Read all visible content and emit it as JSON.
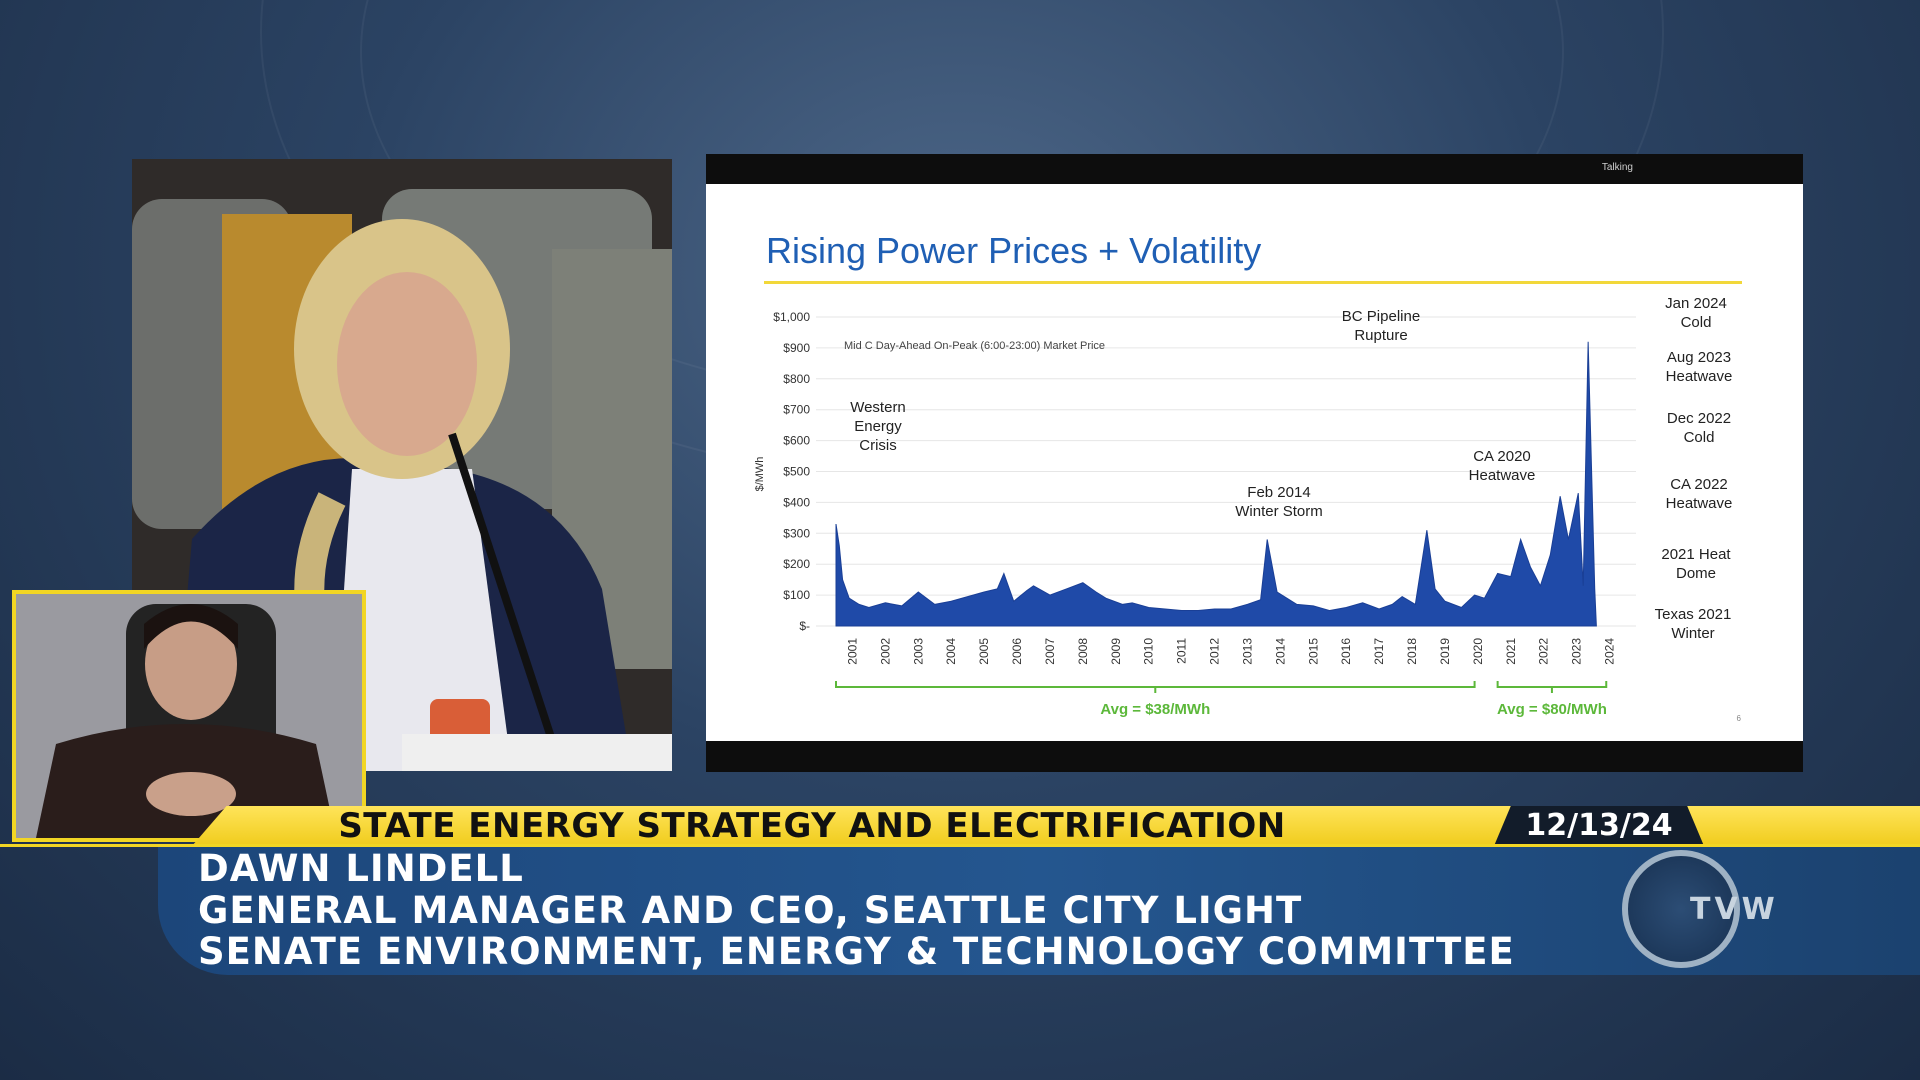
{
  "slide": {
    "top_label": "Talking",
    "title": "Rising Power Prices + Volatility",
    "page_number": "6"
  },
  "chart_data": {
    "type": "area",
    "subtitle": "Mid C Day-Ahead On-Peak (6:00-23:00) Market Price",
    "ylabel": "$/MWh",
    "ylim": [
      0,
      1000
    ],
    "y_ticks": [
      "$1,000",
      "$900",
      "$800",
      "$700",
      "$600",
      "$500",
      "$400",
      "$300",
      "$200",
      "$100",
      "$-"
    ],
    "x_ticks": [
      "2001",
      "2002",
      "2003",
      "2004",
      "2005",
      "2006",
      "2007",
      "2008",
      "2009",
      "2010",
      "2011",
      "2012",
      "2013",
      "2014",
      "2015",
      "2016",
      "2017",
      "2018",
      "2019",
      "2020",
      "2021",
      "2022",
      "2023",
      "2024"
    ],
    "series": [
      {
        "color": "#1f4aa8",
        "x": [
          2001.0,
          2001.1,
          2001.2,
          2001.4,
          2001.7,
          2002.0,
          2002.5,
          2003.0,
          2003.5,
          2004.0,
          2004.5,
          2005.0,
          2005.5,
          2005.9,
          2006.1,
          2006.4,
          2006.8,
          2007.0,
          2007.5,
          2008.0,
          2008.5,
          2008.9,
          2009.2,
          2009.7,
          2010.0,
          2010.5,
          2011.0,
          2011.5,
          2012.0,
          2012.5,
          2013.0,
          2013.5,
          2013.9,
          2014.1,
          2014.4,
          2015.0,
          2015.5,
          2016.0,
          2016.5,
          2017.0,
          2017.5,
          2017.9,
          2018.2,
          2018.6,
          2018.95,
          2019.2,
          2019.5,
          2020.0,
          2020.4,
          2020.7,
          2021.1,
          2021.5,
          2021.8,
          2022.1,
          2022.4,
          2022.7,
          2023.0,
          2023.25,
          2023.55,
          2023.7,
          2023.85,
          2024.05,
          2024.1
        ],
        "y": [
          330,
          260,
          150,
          90,
          70,
          60,
          75,
          65,
          110,
          70,
          80,
          95,
          110,
          120,
          170,
          80,
          115,
          130,
          100,
          120,
          140,
          110,
          90,
          70,
          75,
          60,
          55,
          50,
          50,
          55,
          55,
          70,
          85,
          280,
          110,
          70,
          65,
          50,
          60,
          75,
          55,
          70,
          95,
          70,
          310,
          120,
          80,
          60,
          100,
          90,
          170,
          160,
          280,
          190,
          130,
          230,
          420,
          280,
          430,
          130,
          920,
          120,
          0
        ]
      }
    ],
    "annotations": [
      {
        "text": "Western Energy Crisis"
      },
      {
        "text": "BC Pipeline Rupture"
      },
      {
        "text": "Feb 2014 Winter Storm"
      },
      {
        "text": "CA 2020 Heatwave"
      },
      {
        "text": "Jan 2024 Cold"
      },
      {
        "text": "Aug 2023 Heatwave"
      },
      {
        "text": "Dec 2022 Cold"
      },
      {
        "text": "CA 2022 Heatwave"
      },
      {
        "text": "2021 Heat Dome"
      },
      {
        "text": "Texas 2021 Winter"
      }
    ],
    "averages": [
      {
        "label": "Avg = $38/MWh",
        "from": "2001",
        "to": "2020"
      },
      {
        "label": "Avg = $80/MWh",
        "from": "2021",
        "to": "2024"
      }
    ],
    "grid": true
  },
  "broadcast": {
    "topic": "STATE ENERGY STRATEGY AND ELECTRIFICATION",
    "date": "12/13/24",
    "speaker_name": "DAWN LINDELL",
    "speaker_title": "GENERAL MANAGER AND CEO, SEATTLE CITY LIGHT",
    "committee": "SENATE ENVIRONMENT, ENERGY & TECHNOLOGY COMMITTEE",
    "logo_text": "TVW"
  },
  "colors": {
    "accent_yellow": "#f2d624",
    "slide_title_blue": "#1f5fb4",
    "avg_green": "#5cb83a",
    "name_bar_blue": "#1f4e86"
  }
}
